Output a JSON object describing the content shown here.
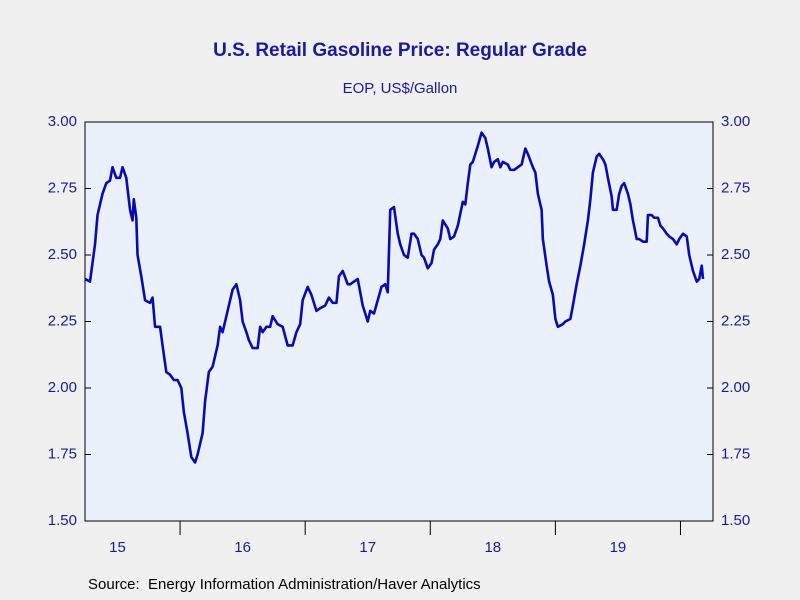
{
  "chart_data": {
    "type": "line",
    "title": "U.S. Retail Gasoline Price: Regular Grade",
    "subtitle": "EOP, US$/Gallon",
    "source": "Source:  Energy Information Administration/Haver Analytics",
    "color": "#0a0ab4",
    "xlim": [
      2015.24,
      2020.26
    ],
    "xticks": [
      2016,
      2017,
      2018,
      2019,
      2020
    ],
    "xlabels": [
      {
        "value": 2015.5,
        "label": "15"
      },
      {
        "value": 2016.5,
        "label": "16"
      },
      {
        "value": 2017.5,
        "label": "17"
      },
      {
        "value": 2018.5,
        "label": "18"
      },
      {
        "value": 2019.5,
        "label": "19"
      }
    ],
    "ylim": [
      1.5,
      3.0
    ],
    "yticks": [
      {
        "value": 1.5,
        "label": "1.50"
      },
      {
        "value": 1.75,
        "label": "1.75"
      },
      {
        "value": 2.0,
        "label": "2.00"
      },
      {
        "value": 2.25,
        "label": "2.25"
      },
      {
        "value": 2.5,
        "label": "2.50"
      },
      {
        "value": 2.75,
        "label": "2.75"
      },
      {
        "value": 3.0,
        "label": "3.00"
      }
    ],
    "x": [
      2015.24,
      2015.28,
      2015.32,
      2015.34,
      2015.38,
      2015.41,
      2015.44,
      2015.46,
      2015.49,
      2015.52,
      2015.54,
      2015.57,
      2015.6,
      2015.62,
      2015.63,
      2015.65,
      2015.66,
      2015.69,
      2015.72,
      2015.76,
      2015.78,
      2015.8,
      2015.84,
      2015.86,
      2015.89,
      2015.92,
      2015.95,
      2015.98,
      2016.01,
      2016.03,
      2016.06,
      2016.09,
      2016.12,
      2016.14,
      2016.18,
      2016.2,
      2016.23,
      2016.26,
      2016.28,
      2016.3,
      2016.32,
      2016.34,
      2016.38,
      2016.42,
      2016.45,
      2016.48,
      2016.5,
      2016.53,
      2016.55,
      2016.58,
      2016.62,
      2016.64,
      2016.66,
      2016.69,
      2016.72,
      2016.74,
      2016.78,
      2016.82,
      2016.86,
      2016.9,
      2016.93,
      2016.96,
      2016.98,
      2017.02,
      2017.05,
      2017.09,
      2017.12,
      2017.16,
      2017.19,
      2017.22,
      2017.25,
      2017.27,
      2017.3,
      2017.34,
      2017.36,
      2017.39,
      2017.42,
      2017.46,
      2017.5,
      2017.52,
      2017.55,
      2017.58,
      2017.61,
      2017.64,
      2017.66,
      2017.68,
      2017.71,
      2017.74,
      2017.76,
      2017.79,
      2017.82,
      2017.85,
      2017.87,
      2017.9,
      2017.93,
      2017.95,
      2017.98,
      2018.01,
      2018.03,
      2018.06,
      2018.08,
      2018.1,
      2018.14,
      2018.16,
      2018.19,
      2018.22,
      2018.26,
      2018.28,
      2018.3,
      2018.32,
      2018.34,
      2018.38,
      2018.41,
      2018.44,
      2018.46,
      2018.49,
      2018.51,
      2018.54,
      2018.56,
      2018.58,
      2018.62,
      2018.64,
      2018.67,
      2018.7,
      2018.73,
      2018.76,
      2018.78,
      2018.82,
      2018.84,
      2018.86,
      2018.89,
      2018.9,
      2018.93,
      2018.95,
      2018.98,
      2019.0,
      2019.02,
      2019.06,
      2019.08,
      2019.12,
      2019.14,
      2019.17,
      2019.2,
      2019.23,
      2019.26,
      2019.28,
      2019.3,
      2019.33,
      2019.35,
      2019.38,
      2019.4,
      2019.42,
      2019.45,
      2019.46,
      2019.49,
      2019.51,
      2019.53,
      2019.55,
      2019.58,
      2019.6,
      2019.62,
      2019.65,
      2019.67,
      2019.7,
      2019.73,
      2019.74,
      2019.77,
      2019.79,
      2019.82,
      2019.84,
      2019.86,
      2019.89,
      2019.91,
      2019.94,
      2019.97,
      2019.99,
      2020.02,
      2020.05,
      2020.07,
      2020.1,
      2020.13,
      2020.15,
      2020.17,
      2020.18
    ],
    "values": [
      2.41,
      2.4,
      2.54,
      2.65,
      2.73,
      2.77,
      2.78,
      2.83,
      2.79,
      2.79,
      2.83,
      2.79,
      2.67,
      2.63,
      2.71,
      2.64,
      2.5,
      2.42,
      2.33,
      2.32,
      2.34,
      2.23,
      2.23,
      2.16,
      2.06,
      2.05,
      2.03,
      2.03,
      2.0,
      1.91,
      1.83,
      1.74,
      1.72,
      1.75,
      1.83,
      1.95,
      2.06,
      2.08,
      2.12,
      2.16,
      2.23,
      2.21,
      2.29,
      2.37,
      2.39,
      2.33,
      2.25,
      2.21,
      2.18,
      2.15,
      2.15,
      2.23,
      2.21,
      2.23,
      2.23,
      2.27,
      2.24,
      2.23,
      2.16,
      2.16,
      2.21,
      2.24,
      2.33,
      2.38,
      2.35,
      2.29,
      2.3,
      2.31,
      2.34,
      2.32,
      2.32,
      2.42,
      2.44,
      2.39,
      2.39,
      2.4,
      2.41,
      2.31,
      2.25,
      2.29,
      2.28,
      2.33,
      2.38,
      2.39,
      2.36,
      2.67,
      2.68,
      2.58,
      2.54,
      2.5,
      2.49,
      2.58,
      2.58,
      2.56,
      2.5,
      2.49,
      2.45,
      2.47,
      2.52,
      2.54,
      2.56,
      2.63,
      2.6,
      2.56,
      2.57,
      2.61,
      2.7,
      2.69,
      2.77,
      2.84,
      2.85,
      2.91,
      2.96,
      2.94,
      2.9,
      2.83,
      2.85,
      2.86,
      2.83,
      2.85,
      2.84,
      2.82,
      2.82,
      2.83,
      2.84,
      2.9,
      2.88,
      2.83,
      2.81,
      2.73,
      2.67,
      2.56,
      2.46,
      2.4,
      2.35,
      2.26,
      2.23,
      2.24,
      2.25,
      2.26,
      2.31,
      2.39,
      2.46,
      2.54,
      2.63,
      2.71,
      2.81,
      2.87,
      2.88,
      2.86,
      2.84,
      2.79,
      2.72,
      2.67,
      2.67,
      2.73,
      2.76,
      2.77,
      2.73,
      2.69,
      2.63,
      2.56,
      2.56,
      2.55,
      2.55,
      2.65,
      2.65,
      2.64,
      2.64,
      2.61,
      2.6,
      2.58,
      2.57,
      2.56,
      2.54,
      2.56,
      2.58,
      2.57,
      2.5,
      2.44,
      2.4,
      2.41,
      2.46,
      2.41
    ]
  }
}
